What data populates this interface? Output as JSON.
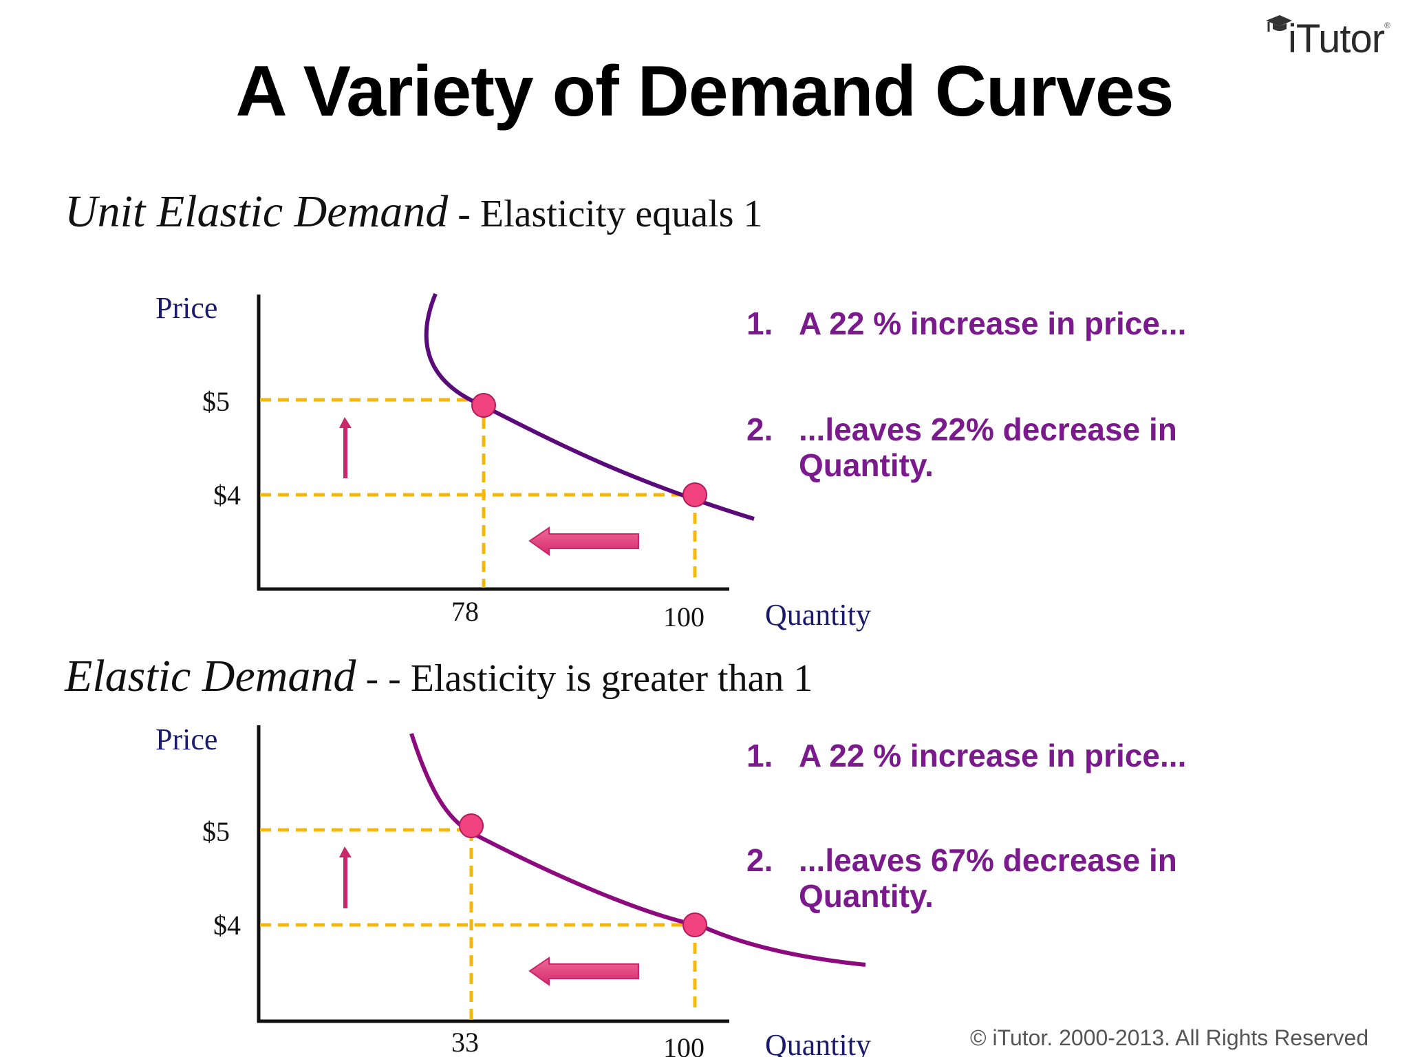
{
  "slide": {
    "title": "A Variety of Demand Curves",
    "logo": "iTutor",
    "logo_mark": "®",
    "copyright": "© iTutor. 2000-2013. All Rights Reserved"
  },
  "colors": {
    "curve_top": "#5a0a7a",
    "curve_bottom": "#8c0a7d",
    "dashed": "#f5b80a",
    "point_fill": "#f0437f",
    "arrow": "#e8407e",
    "text_points": "#7a1a8c",
    "axis_words": "#1a1a6e"
  },
  "icons": [
    "graduation-cap-icon",
    "up-arrow-icon",
    "left-arrow-icon"
  ],
  "sections": [
    {
      "heading_italic": "Unit Elastic Demand",
      "heading_rest": " - Elasticity equals 1",
      "points": [
        {
          "num": "1.",
          "text": "A 22 % increase in price..."
        },
        {
          "num": "2.",
          "text": "...leaves  22% decrease in",
          "cont": "Quantity."
        }
      ]
    },
    {
      "heading_italic": "Elastic Demand",
      "heading_rest": " - - Elasticity is greater than 1",
      "points": [
        {
          "num": "1.",
          "text": "A 22 % increase in price..."
        },
        {
          "num": "2.",
          "text": "...leaves  67% decrease in",
          "cont": "Quantity."
        }
      ]
    }
  ],
  "chart_data": [
    {
      "type": "line",
      "xlabel": "Quantity",
      "ylabel": "Price",
      "x_ticks": [
        "78",
        "100"
      ],
      "y_ticks": [
        "$5",
        "$4"
      ],
      "points": [
        {
          "x": 78,
          "y": 5
        },
        {
          "x": 100,
          "y": 4
        }
      ],
      "grid": false
    },
    {
      "type": "line",
      "xlabel": "Quantity",
      "ylabel": "Price",
      "x_ticks": [
        "33",
        "100"
      ],
      "y_ticks": [
        "$5",
        "$4"
      ],
      "points": [
        {
          "x": 33,
          "y": 5
        },
        {
          "x": 100,
          "y": 4
        }
      ],
      "grid": false
    }
  ]
}
